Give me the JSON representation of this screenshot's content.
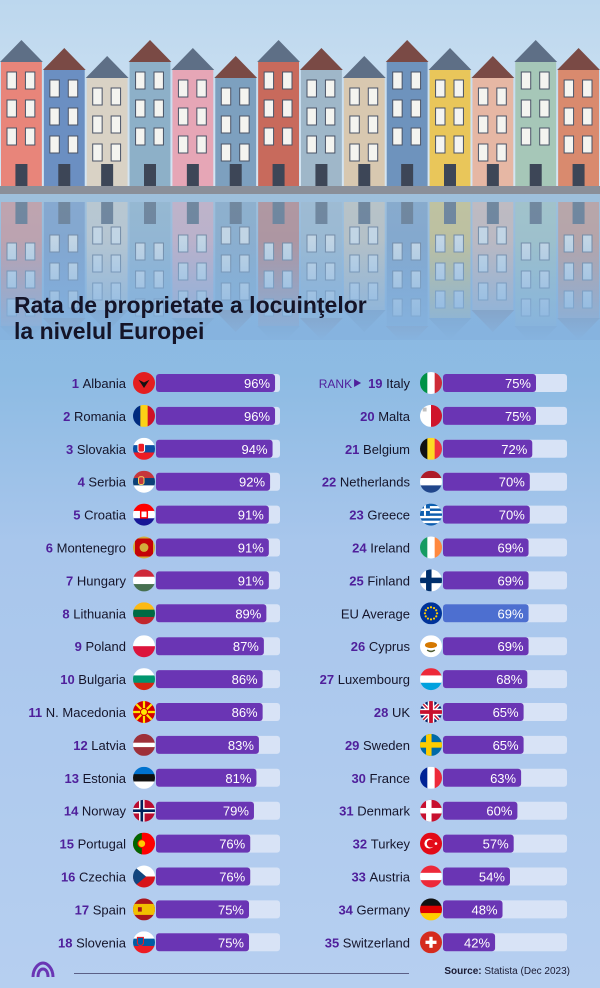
{
  "title": {
    "line1": "Rata de proprietate a locuinţelor",
    "line2": "la nivelul Europei"
  },
  "rank_label": "RANK",
  "source": {
    "label": "Source:",
    "text": "Statista (Dec 2023)"
  },
  "colors": {
    "bar_fill": "#6a35b4",
    "bar_track": "#d8e3f6",
    "eu_fill": "#4d6fd0",
    "rank_text": "#4f1f9b",
    "label_text": "#15152b"
  },
  "chart_data": {
    "type": "bar",
    "orientation": "horizontal",
    "xlim": [
      0,
      100
    ],
    "unit": "%",
    "columns": [
      [
        {
          "rank": "1",
          "country": "Albania",
          "value": 96,
          "flag": "albania-flag"
        },
        {
          "rank": "2",
          "country": "Romania",
          "value": 96,
          "flag": "romania-flag"
        },
        {
          "rank": "3",
          "country": "Slovakia",
          "value": 94,
          "flag": "slovakia-flag"
        },
        {
          "rank": "4",
          "country": "Serbia",
          "value": 92,
          "flag": "serbia-flag"
        },
        {
          "rank": "5",
          "country": "Croatia",
          "value": 91,
          "flag": "croatia-flag"
        },
        {
          "rank": "6",
          "country": "Montenegro",
          "value": 91,
          "flag": "montenegro-flag"
        },
        {
          "rank": "7",
          "country": "Hungary",
          "value": 91,
          "flag": "hungary-flag"
        },
        {
          "rank": "8",
          "country": "Lithuania",
          "value": 89,
          "flag": "lithuania-flag"
        },
        {
          "rank": "9",
          "country": "Poland",
          "value": 87,
          "flag": "poland-flag"
        },
        {
          "rank": "10",
          "country": "Bulgaria",
          "value": 86,
          "flag": "bulgaria-flag"
        },
        {
          "rank": "11",
          "country": "N. Macedonia",
          "value": 86,
          "flag": "north-macedonia-flag"
        },
        {
          "rank": "12",
          "country": "Latvia",
          "value": 83,
          "flag": "latvia-flag"
        },
        {
          "rank": "13",
          "country": "Estonia",
          "value": 81,
          "flag": "estonia-flag"
        },
        {
          "rank": "14",
          "country": "Norway",
          "value": 79,
          "flag": "norway-flag"
        },
        {
          "rank": "15",
          "country": "Portugal",
          "value": 76,
          "flag": "portugal-flag"
        },
        {
          "rank": "16",
          "country": "Czechia",
          "value": 76,
          "flag": "czechia-flag"
        },
        {
          "rank": "17",
          "country": "Spain",
          "value": 75,
          "flag": "spain-flag"
        },
        {
          "rank": "18",
          "country": "Slovenia",
          "value": 75,
          "flag": "slovenia-flag"
        }
      ],
      [
        {
          "rank": "19",
          "country": "Italy",
          "value": 75,
          "flag": "italy-flag"
        },
        {
          "rank": "20",
          "country": "Malta",
          "value": 75,
          "flag": "malta-flag"
        },
        {
          "rank": "21",
          "country": "Belgium",
          "value": 72,
          "flag": "belgium-flag"
        },
        {
          "rank": "22",
          "country": "Netherlands",
          "value": 70,
          "flag": "netherlands-flag"
        },
        {
          "rank": "23",
          "country": "Greece",
          "value": 70,
          "flag": "greece-flag"
        },
        {
          "rank": "24",
          "country": "Ireland",
          "value": 69,
          "flag": "ireland-flag"
        },
        {
          "rank": "25",
          "country": "Finland",
          "value": 69,
          "flag": "finland-flag"
        },
        {
          "rank": "",
          "country": "EU Average",
          "value": 69,
          "flag": "eu-flag",
          "highlight": true
        },
        {
          "rank": "26",
          "country": "Cyprus",
          "value": 69,
          "flag": "cyprus-flag"
        },
        {
          "rank": "27",
          "country": "Luxembourg",
          "value": 68,
          "flag": "luxembourg-flag"
        },
        {
          "rank": "28",
          "country": "UK",
          "value": 65,
          "flag": "uk-flag"
        },
        {
          "rank": "29",
          "country": "Sweden",
          "value": 65,
          "flag": "sweden-flag"
        },
        {
          "rank": "30",
          "country": "France",
          "value": 63,
          "flag": "france-flag"
        },
        {
          "rank": "31",
          "country": "Denmark",
          "value": 60,
          "flag": "denmark-flag"
        },
        {
          "rank": "32",
          "country": "Turkey",
          "value": 57,
          "flag": "turkey-flag"
        },
        {
          "rank": "33",
          "country": "Austria",
          "value": 54,
          "flag": "austria-flag"
        },
        {
          "rank": "34",
          "country": "Germany",
          "value": 48,
          "flag": "germany-flag"
        },
        {
          "rank": "35",
          "country": "Switzerland",
          "value": 42,
          "flag": "switzerland-flag"
        }
      ]
    ]
  }
}
